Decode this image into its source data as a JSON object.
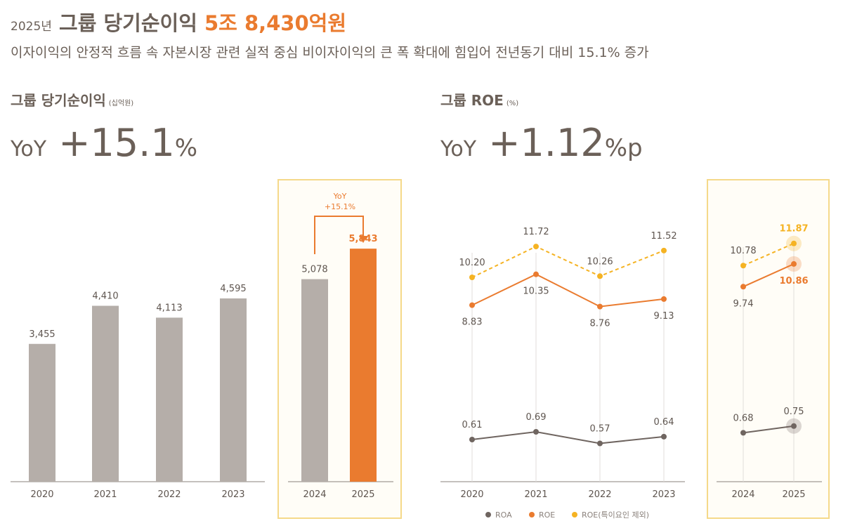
{
  "header": {
    "year": "2025년",
    "title": "그룹 당기순이익",
    "highlight": "5조 8,430억원",
    "subtitle": "이자이익의 안정적 흐름 속 자본시장 관련 실적 중심 비이자이익의 큰 폭 확대에 힘입어 전년동기 대비 15.1% 증가"
  },
  "left": {
    "title": "그룹 당기순이익",
    "unit": "(십억원)",
    "yoy_prefix": "YoY",
    "yoy_value": "+15.1",
    "yoy_unit": "%"
  },
  "right": {
    "title": "그룹 ROE",
    "unit": "(%)",
    "yoy_prefix": "YoY",
    "yoy_value": "+1.12",
    "yoy_unit": "%p"
  },
  "colors": {
    "gray_bar": "#b5aea9",
    "orange": "#ea7b2f",
    "yellow": "#f5b323",
    "roa": "#6f6560",
    "highlight_border": "#f5d98a"
  },
  "chart_data": [
    {
      "type": "bar",
      "title": "그룹 당기순이익",
      "unit": "(십억원)",
      "categories": [
        "2020",
        "2021",
        "2022",
        "2023",
        "2024",
        "2025"
      ],
      "values": [
        3455,
        4410,
        4113,
        4595,
        5078,
        5843
      ],
      "labels": [
        "3,455",
        "4,410",
        "4,113",
        "4,595",
        "5,078",
        "5,843"
      ],
      "highlighted": [
        "2024",
        "2025"
      ],
      "annotation": {
        "line1": "YoY",
        "line2": "+15.1%"
      }
    },
    {
      "type": "line",
      "title": "그룹 ROE",
      "unit": "(%)",
      "categories": [
        "2020",
        "2021",
        "2022",
        "2023",
        "2024",
        "2025"
      ],
      "highlighted": [
        "2024",
        "2025"
      ],
      "series": [
        {
          "name": "ROA",
          "values": [
            0.61,
            0.69,
            0.57,
            0.64,
            0.68,
            0.75
          ]
        },
        {
          "name": "ROE",
          "values": [
            8.83,
            10.35,
            8.76,
            9.13,
            9.74,
            10.86
          ]
        },
        {
          "name": "ROE(특이요인 제외)",
          "values": [
            10.2,
            11.72,
            10.26,
            11.52,
            10.78,
            11.87
          ]
        }
      ],
      "legend": "bottom"
    }
  ]
}
